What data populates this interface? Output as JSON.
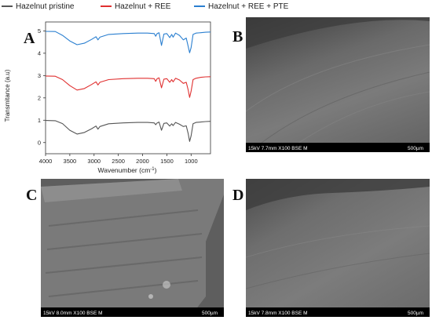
{
  "panels": {
    "a": "A",
    "b": "B",
    "c": "C",
    "d": "D"
  },
  "chart_data": {
    "type": "line",
    "xlabel_main": "Wavenumber (cm",
    "xlabel_sup": "-1",
    "xlabel_end": ")",
    "ylabel": "Transmitance (a.u)",
    "xlim": [
      4000,
      600
    ],
    "ylim": [
      -0.5,
      5.4
    ],
    "x_reversed": true,
    "x_ticks": [
      4000,
      3500,
      3000,
      2500,
      2000,
      1500,
      1000
    ],
    "y_ticks": [
      0,
      1,
      2,
      3,
      4,
      5
    ],
    "legend_position": "top",
    "series": [
      {
        "name": "Hazelnut pristine",
        "color": "#555555",
        "points": [
          [
            4000,
            0.99
          ],
          [
            3800,
            0.98
          ],
          [
            3650,
            0.85
          ],
          [
            3500,
            0.55
          ],
          [
            3350,
            0.38
          ],
          [
            3200,
            0.45
          ],
          [
            3050,
            0.62
          ],
          [
            2960,
            0.74
          ],
          [
            2920,
            0.6
          ],
          [
            2880,
            0.72
          ],
          [
            2700,
            0.84
          ],
          [
            2400,
            0.88
          ],
          [
            2100,
            0.9
          ],
          [
            1900,
            0.9
          ],
          [
            1760,
            0.88
          ],
          [
            1730,
            0.8
          ],
          [
            1700,
            0.88
          ],
          [
            1660,
            0.92
          ],
          [
            1610,
            0.55
          ],
          [
            1560,
            0.86
          ],
          [
            1500,
            0.88
          ],
          [
            1440,
            0.74
          ],
          [
            1400,
            0.84
          ],
          [
            1370,
            0.76
          ],
          [
            1320,
            0.9
          ],
          [
            1240,
            0.82
          ],
          [
            1160,
            0.72
          ],
          [
            1100,
            0.75
          ],
          [
            1060,
            0.4
          ],
          [
            1030,
            0.05
          ],
          [
            1000,
            0.3
          ],
          [
            960,
            0.84
          ],
          [
            900,
            0.9
          ],
          [
            800,
            0.92
          ],
          [
            700,
            0.94
          ],
          [
            600,
            0.95
          ]
        ]
      },
      {
        "name": "Hazelnut + REE",
        "color": "#e03030",
        "points": [
          [
            4000,
            2.98
          ],
          [
            3800,
            2.97
          ],
          [
            3650,
            2.82
          ],
          [
            3500,
            2.55
          ],
          [
            3350,
            2.35
          ],
          [
            3200,
            2.42
          ],
          [
            3050,
            2.6
          ],
          [
            2960,
            2.72
          ],
          [
            2920,
            2.58
          ],
          [
            2880,
            2.7
          ],
          [
            2700,
            2.82
          ],
          [
            2400,
            2.86
          ],
          [
            2100,
            2.88
          ],
          [
            1900,
            2.88
          ],
          [
            1760,
            2.86
          ],
          [
            1730,
            2.74
          ],
          [
            1700,
            2.86
          ],
          [
            1660,
            2.9
          ],
          [
            1610,
            2.45
          ],
          [
            1560,
            2.84
          ],
          [
            1500,
            2.86
          ],
          [
            1440,
            2.7
          ],
          [
            1400,
            2.82
          ],
          [
            1370,
            2.72
          ],
          [
            1320,
            2.88
          ],
          [
            1240,
            2.8
          ],
          [
            1160,
            2.65
          ],
          [
            1100,
            2.7
          ],
          [
            1060,
            2.35
          ],
          [
            1030,
            2.02
          ],
          [
            1000,
            2.3
          ],
          [
            960,
            2.82
          ],
          [
            900,
            2.88
          ],
          [
            800,
            2.92
          ],
          [
            700,
            2.94
          ],
          [
            600,
            2.95
          ]
        ]
      },
      {
        "name": "Hazelnut + REE + PTE",
        "color": "#2a7fd0",
        "points": [
          [
            4000,
            4.98
          ],
          [
            3800,
            4.97
          ],
          [
            3650,
            4.8
          ],
          [
            3500,
            4.55
          ],
          [
            3350,
            4.38
          ],
          [
            3200,
            4.45
          ],
          [
            3050,
            4.62
          ],
          [
            2960,
            4.74
          ],
          [
            2920,
            4.6
          ],
          [
            2880,
            4.72
          ],
          [
            2700,
            4.84
          ],
          [
            2400,
            4.88
          ],
          [
            2100,
            4.9
          ],
          [
            1900,
            4.9
          ],
          [
            1760,
            4.88
          ],
          [
            1730,
            4.76
          ],
          [
            1700,
            4.88
          ],
          [
            1660,
            4.92
          ],
          [
            1610,
            4.35
          ],
          [
            1560,
            4.86
          ],
          [
            1500,
            4.88
          ],
          [
            1440,
            4.7
          ],
          [
            1400,
            4.84
          ],
          [
            1370,
            4.72
          ],
          [
            1320,
            4.9
          ],
          [
            1240,
            4.8
          ],
          [
            1160,
            4.6
          ],
          [
            1100,
            4.68
          ],
          [
            1060,
            4.3
          ],
          [
            1030,
            4.02
          ],
          [
            1000,
            4.25
          ],
          [
            960,
            4.84
          ],
          [
            900,
            4.9
          ],
          [
            800,
            4.92
          ],
          [
            700,
            4.94
          ],
          [
            600,
            4.95
          ]
        ]
      }
    ]
  },
  "sem_images": [
    {
      "id": "B",
      "info": "15kV 7.7mm X100 BSE M",
      "scale": "500µm"
    },
    {
      "id": "C",
      "info": "15kV 8.0mm X100 BSE M",
      "scale": "500µm"
    },
    {
      "id": "D",
      "info": "15kV 7.8mm X100 BSE M",
      "scale": "500µm"
    }
  ]
}
